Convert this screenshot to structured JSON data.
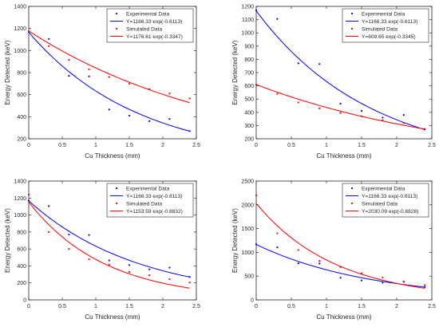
{
  "chart_data": [
    {
      "type": "scatter",
      "xlabel": "Cu Thickness (mm)",
      "ylabel": "Energy Detected (keV)",
      "xlim": [
        0,
        2.5
      ],
      "ylim": [
        200,
        1400
      ],
      "xticks": [
        0,
        0.5,
        1,
        1.5,
        2,
        2.5
      ],
      "yticks": [
        200,
        400,
        600,
        800,
        1000,
        1200,
        1400
      ],
      "xtick_labels": [
        "0",
        "0.5",
        "1",
        "1.5",
        "2",
        "2.5"
      ],
      "ytick_labels": [
        "200",
        "400",
        "600",
        "800",
        "1000",
        "1200",
        "1400"
      ],
      "legend_position": "top-right",
      "series": [
        {
          "name": "Experimental Data",
          "kind": "points",
          "color": "#0000ff",
          "x": [
            0,
            0.3,
            0.6,
            0.9,
            1.2,
            1.5,
            1.8,
            2.1,
            2.4
          ],
          "y": [
            1170,
            1105,
            770,
            765,
            465,
            410,
            360,
            380,
            270
          ]
        },
        {
          "name": "Y=1166.33 exp(-0.6113)",
          "kind": "fit",
          "color": "#0000ff",
          "a": 1166.33,
          "b": -0.6113
        },
        {
          "name": "Simulated Data",
          "kind": "points",
          "color": "#ff0000",
          "x": [
            0,
            0.3,
            0.6,
            0.9,
            1.2,
            1.5,
            1.8,
            2.1,
            2.4
          ],
          "y": [
            1175,
            1040,
            915,
            830,
            760,
            700,
            650,
            610,
            565
          ]
        },
        {
          "name": "Y=1176.61 exp(-0.3347)",
          "kind": "fit",
          "color": "#ff0000",
          "a": 1176.61,
          "b": -0.3347
        }
      ]
    },
    {
      "type": "scatter",
      "xlabel": "Cu Thickness (mm)",
      "ylabel": "Energy Detected (keV)",
      "xlim": [
        0,
        2.5
      ],
      "ylim": [
        200,
        1200
      ],
      "xticks": [
        0,
        0.5,
        1,
        1.5,
        2,
        2.5
      ],
      "yticks": [
        200,
        300,
        400,
        500,
        600,
        700,
        800,
        900,
        1000,
        1100,
        1200
      ],
      "xtick_labels": [
        "0",
        "0.5",
        "1",
        "1.5",
        "2",
        "2.5"
      ],
      "ytick_labels": [
        "200",
        "300",
        "400",
        "500",
        "600",
        "700",
        "800",
        "900",
        "1000",
        "1100",
        "1200"
      ],
      "legend_position": "top-right",
      "series": [
        {
          "name": "Experimental Data",
          "kind": "points",
          "color": "#0000ff",
          "x": [
            0,
            0.3,
            0.6,
            0.9,
            1.2,
            1.5,
            1.8,
            2.1,
            2.4
          ],
          "y": [
            1170,
            1105,
            770,
            765,
            465,
            410,
            360,
            380,
            270
          ]
        },
        {
          "name": "Y=1166.33 exp(-0.6113)",
          "kind": "fit",
          "color": "#0000ff",
          "a": 1166.33,
          "b": -0.6113
        },
        {
          "name": "Simulated Data",
          "kind": "points",
          "color": "#ff0000",
          "x": [
            0,
            0.3,
            0.6,
            0.9,
            1.2,
            1.5,
            1.8,
            2.1,
            2.4
          ],
          "y": [
            610,
            540,
            475,
            430,
            395,
            370,
            340,
            320,
            275
          ]
        },
        {
          "name": "Y=609.65 exp(-0.3345)",
          "kind": "fit",
          "color": "#ff0000",
          "a": 609.65,
          "b": -0.3345
        }
      ]
    },
    {
      "type": "scatter",
      "xlabel": "Cu Thickness (mm)",
      "ylabel": "Energy Detected (keV)",
      "xlim": [
        0,
        2.5
      ],
      "ylim": [
        0,
        1400
      ],
      "xticks": [
        0,
        0.5,
        1,
        1.5,
        2,
        2.5
      ],
      "yticks": [
        0,
        200,
        400,
        600,
        800,
        1000,
        1200,
        1400
      ],
      "xtick_labels": [
        "0",
        "0.5",
        "1",
        "1.5",
        "2",
        "2.5"
      ],
      "ytick_labels": [
        "0",
        "200",
        "400",
        "600",
        "800",
        "1000",
        "1200",
        "1400"
      ],
      "legend_position": "top-right",
      "series": [
        {
          "name": "Experimental Data",
          "kind": "points",
          "color": "#0000ff",
          "x": [
            0,
            0.3,
            0.6,
            0.9,
            1.2,
            1.5,
            1.8,
            2.1,
            2.4
          ],
          "y": [
            1170,
            1105,
            770,
            765,
            465,
            410,
            360,
            380,
            270
          ]
        },
        {
          "name": "Y=1166.33 exp(-0.6113)",
          "kind": "fit",
          "color": "#0000ff",
          "a": 1166.33,
          "b": -0.6113
        },
        {
          "name": "Simulated Data",
          "kind": "points",
          "color": "#ff0000",
          "x": [
            0,
            0.3,
            0.6,
            0.9,
            1.2,
            1.5,
            1.8,
            2.1,
            2.4
          ],
          "y": [
            1240,
            800,
            600,
            480,
            415,
            330,
            290,
            245,
            205
          ]
        },
        {
          "name": "Y=1153.59 exp(-0.8832)",
          "kind": "fit",
          "color": "#ff0000",
          "a": 1153.59,
          "b": -0.8832
        }
      ]
    },
    {
      "type": "scatter",
      "xlabel": "Cu Thickness (mm)",
      "ylabel": "Energy Detected (keV)",
      "xlim": [
        0,
        2.5
      ],
      "ylim": [
        0,
        2500
      ],
      "xticks": [
        0,
        0.5,
        1,
        1.5,
        2,
        2.5
      ],
      "yticks": [
        0,
        500,
        1000,
        1500,
        2000,
        2500
      ],
      "xtick_labels": [
        "0",
        "0.5",
        "1",
        "1.5",
        "2",
        "2.5"
      ],
      "ytick_labels": [
        "0",
        "500",
        "1000",
        "1500",
        "2000",
        "2500"
      ],
      "legend_position": "top-right",
      "series": [
        {
          "name": "Experimental Data",
          "kind": "points",
          "color": "#0000ff",
          "x": [
            0,
            0.3,
            0.6,
            0.9,
            1.2,
            1.5,
            1.8,
            2.1,
            2.4
          ],
          "y": [
            1170,
            1105,
            770,
            765,
            465,
            410,
            360,
            380,
            270
          ]
        },
        {
          "name": "Y=1166.33 exp(-0.6113)",
          "kind": "fit",
          "color": "#0000ff",
          "a": 1166.33,
          "b": -0.6113
        },
        {
          "name": "Simulated Data",
          "kind": "points",
          "color": "#ff0000",
          "x": [
            0,
            0.3,
            0.6,
            0.9,
            1.2,
            1.5,
            1.8,
            2.1,
            2.4
          ],
          "y": [
            2200,
            1400,
            1050,
            820,
            690,
            560,
            470,
            390,
            310
          ]
        },
        {
          "name": "Y=2030.09 exp(-0.8828)",
          "kind": "fit",
          "color": "#ff0000",
          "a": 2030.09,
          "b": -0.8828
        }
      ]
    }
  ]
}
